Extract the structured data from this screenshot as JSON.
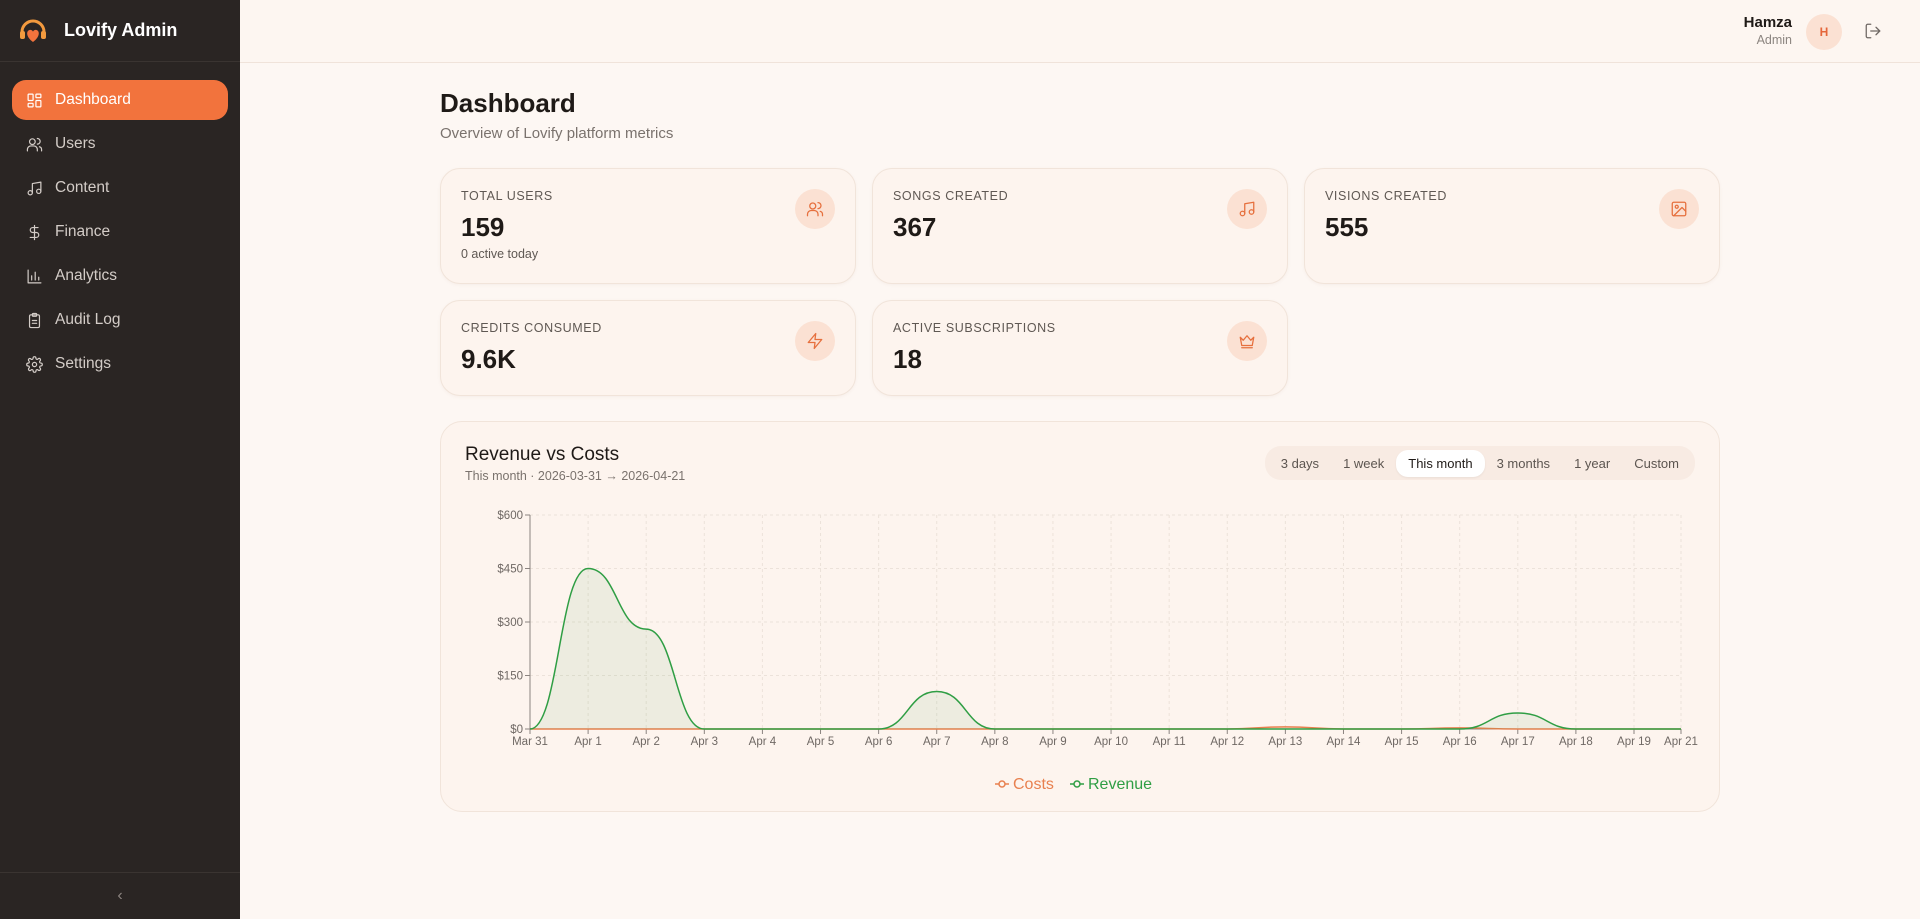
{
  "app": {
    "name": "Lovify Admin"
  },
  "sidebar": {
    "items": [
      {
        "label": "Dashboard",
        "icon": "dashboard-icon",
        "active": true
      },
      {
        "label": "Users",
        "icon": "users-icon"
      },
      {
        "label": "Content",
        "icon": "music-note-icon"
      },
      {
        "label": "Finance",
        "icon": "dollar-icon"
      },
      {
        "label": "Analytics",
        "icon": "bar-chart-icon"
      },
      {
        "label": "Audit Log",
        "icon": "clipboard-icon"
      },
      {
        "label": "Settings",
        "icon": "gear-icon"
      }
    ],
    "collapse_label": "‹"
  },
  "header": {
    "user_name": "Hamza",
    "user_role": "Admin",
    "avatar_initial": "H"
  },
  "page": {
    "title": "Dashboard",
    "subtitle": "Overview of Lovify platform metrics"
  },
  "stats": [
    {
      "label": "TOTAL USERS",
      "value": "159",
      "note": "0 active today",
      "icon": "users-icon"
    },
    {
      "label": "SONGS CREATED",
      "value": "367",
      "icon": "music-note-icon"
    },
    {
      "label": "VISIONS CREATED",
      "value": "555",
      "icon": "image-icon"
    },
    {
      "label": "CREDITS CONSUMED",
      "value": "9.6K",
      "icon": "lightning-icon"
    },
    {
      "label": "ACTIVE SUBSCRIPTIONS",
      "value": "18",
      "icon": "crown-icon"
    }
  ],
  "chart": {
    "title": "Revenue vs Costs",
    "subtitle": "This month · 2026-03-31 → 2026-04-21",
    "ranges": [
      "3 days",
      "1 week",
      "This month",
      "3 months",
      "1 year",
      "Custom"
    ],
    "active_range": "This month"
  },
  "chart_data": {
    "type": "area",
    "categories": [
      "Mar 31",
      "Apr 1",
      "Apr 2",
      "Apr 3",
      "Apr 4",
      "Apr 5",
      "Apr 6",
      "Apr 7",
      "Apr 8",
      "Apr 9",
      "Apr 10",
      "Apr 11",
      "Apr 12",
      "Apr 13",
      "Apr 14",
      "Apr 15",
      "Apr 16",
      "Apr 17",
      "Apr 18",
      "Apr 19",
      "Apr 21"
    ],
    "series": [
      {
        "name": "Costs",
        "color": "#e8804f",
        "values": [
          0,
          0,
          0,
          0,
          0,
          0,
          0,
          0,
          0,
          0,
          0,
          0,
          0,
          6,
          0,
          0,
          3,
          0,
          0,
          0,
          0
        ]
      },
      {
        "name": "Revenue",
        "color": "#2f9e44",
        "values": [
          0,
          450,
          280,
          0,
          0,
          0,
          0,
          105,
          0,
          0,
          0,
          0,
          0,
          0,
          0,
          0,
          0,
          45,
          0,
          0,
          0
        ]
      }
    ],
    "y_ticks": [
      "$0",
      "$150",
      "$300",
      "$450",
      "$600"
    ],
    "ylim": [
      0,
      600
    ],
    "grid": true,
    "legend": "bottom"
  }
}
